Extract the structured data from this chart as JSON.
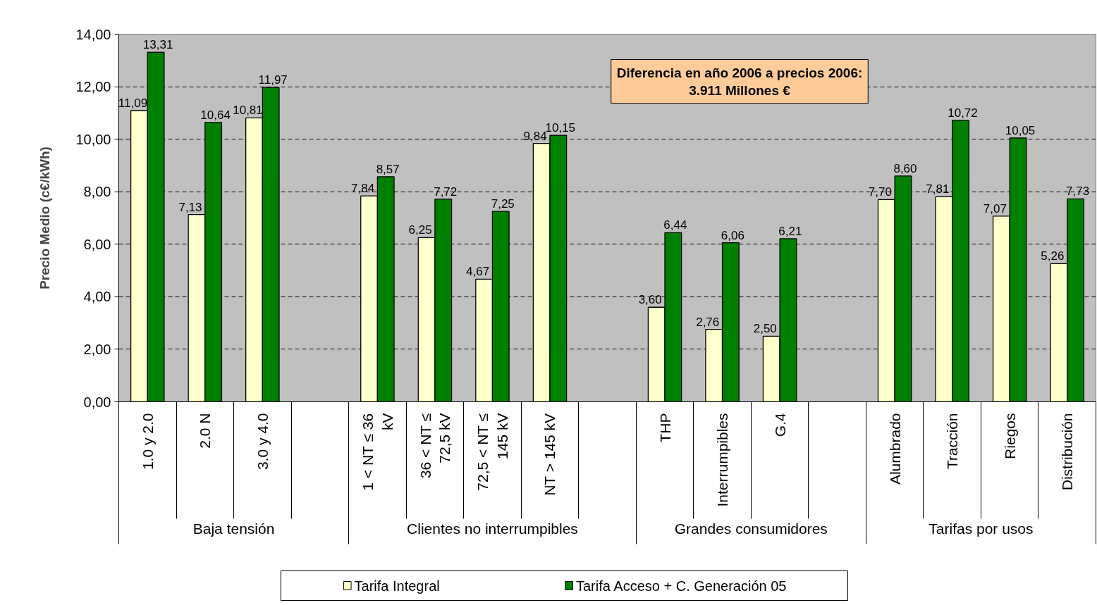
{
  "chart_data": {
    "type": "bar",
    "ylabel": "Precio Medio (c€/kWh)",
    "categories": [
      "1.0 y 2.0",
      "2.0 N",
      "3.0 y 4.0",
      null,
      "1 < NT ≤ 36 kV",
      "36 < NT ≤ 72,5 kV",
      "72,5 < NT ≤ 145 kV",
      "NT > 145 kV",
      null,
      "THP",
      "Interrumpibles",
      "G.4",
      null,
      "Alumbrado",
      "Tracción",
      "Riegos",
      "Distribución"
    ],
    "series": [
      {
        "name": "Tarifa Integral",
        "color": "#ffffcc",
        "values": [
          11.09,
          7.13,
          10.81,
          null,
          7.84,
          6.25,
          4.67,
          9.84,
          null,
          3.6,
          2.76,
          2.5,
          null,
          7.7,
          7.81,
          7.07,
          5.26
        ],
        "value_labels": [
          "11,09",
          "7,13",
          "10,81",
          null,
          "7,84",
          "6,25",
          "4,67",
          "9,84",
          null,
          "3,60",
          "2,76",
          "2,50",
          null,
          "7,70",
          "7,81",
          "7,07",
          "5,26"
        ]
      },
      {
        "name": "Tarifa Acceso + C. Generación 05",
        "color": "#008000",
        "values": [
          13.31,
          10.64,
          11.97,
          null,
          8.57,
          7.72,
          7.25,
          10.15,
          null,
          6.44,
          6.06,
          6.21,
          null,
          8.6,
          10.72,
          10.05,
          7.73
        ],
        "value_labels": [
          "13,31",
          "10,64",
          "11,97",
          null,
          "8,57",
          "7,72",
          "7,25",
          "10,15",
          null,
          "6,44",
          "6,06",
          "6,21",
          null,
          "8,60",
          "10,72",
          "10,05",
          "7,73"
        ]
      }
    ],
    "ylim": [
      0,
      14
    ],
    "yticks": [
      {
        "value": 0,
        "label": "0,00"
      },
      {
        "value": 2,
        "label": "2,00"
      },
      {
        "value": 4,
        "label": "4,00"
      },
      {
        "value": 6,
        "label": "6,00"
      },
      {
        "value": 8,
        "label": "8,00"
      },
      {
        "value": 10,
        "label": "10,00"
      },
      {
        "value": 12,
        "label": "12,00"
      },
      {
        "value": 14,
        "label": "14,00"
      }
    ],
    "grid": "y",
    "legend": "bottom",
    "annotations": [
      "Diferencia en año 2006 a precios 2006:\n3.911 Millones €",
      "Baja tensión",
      "Clientes no interrumpibles",
      "Grandes consumidores",
      "Tarifas por usos"
    ]
  }
}
